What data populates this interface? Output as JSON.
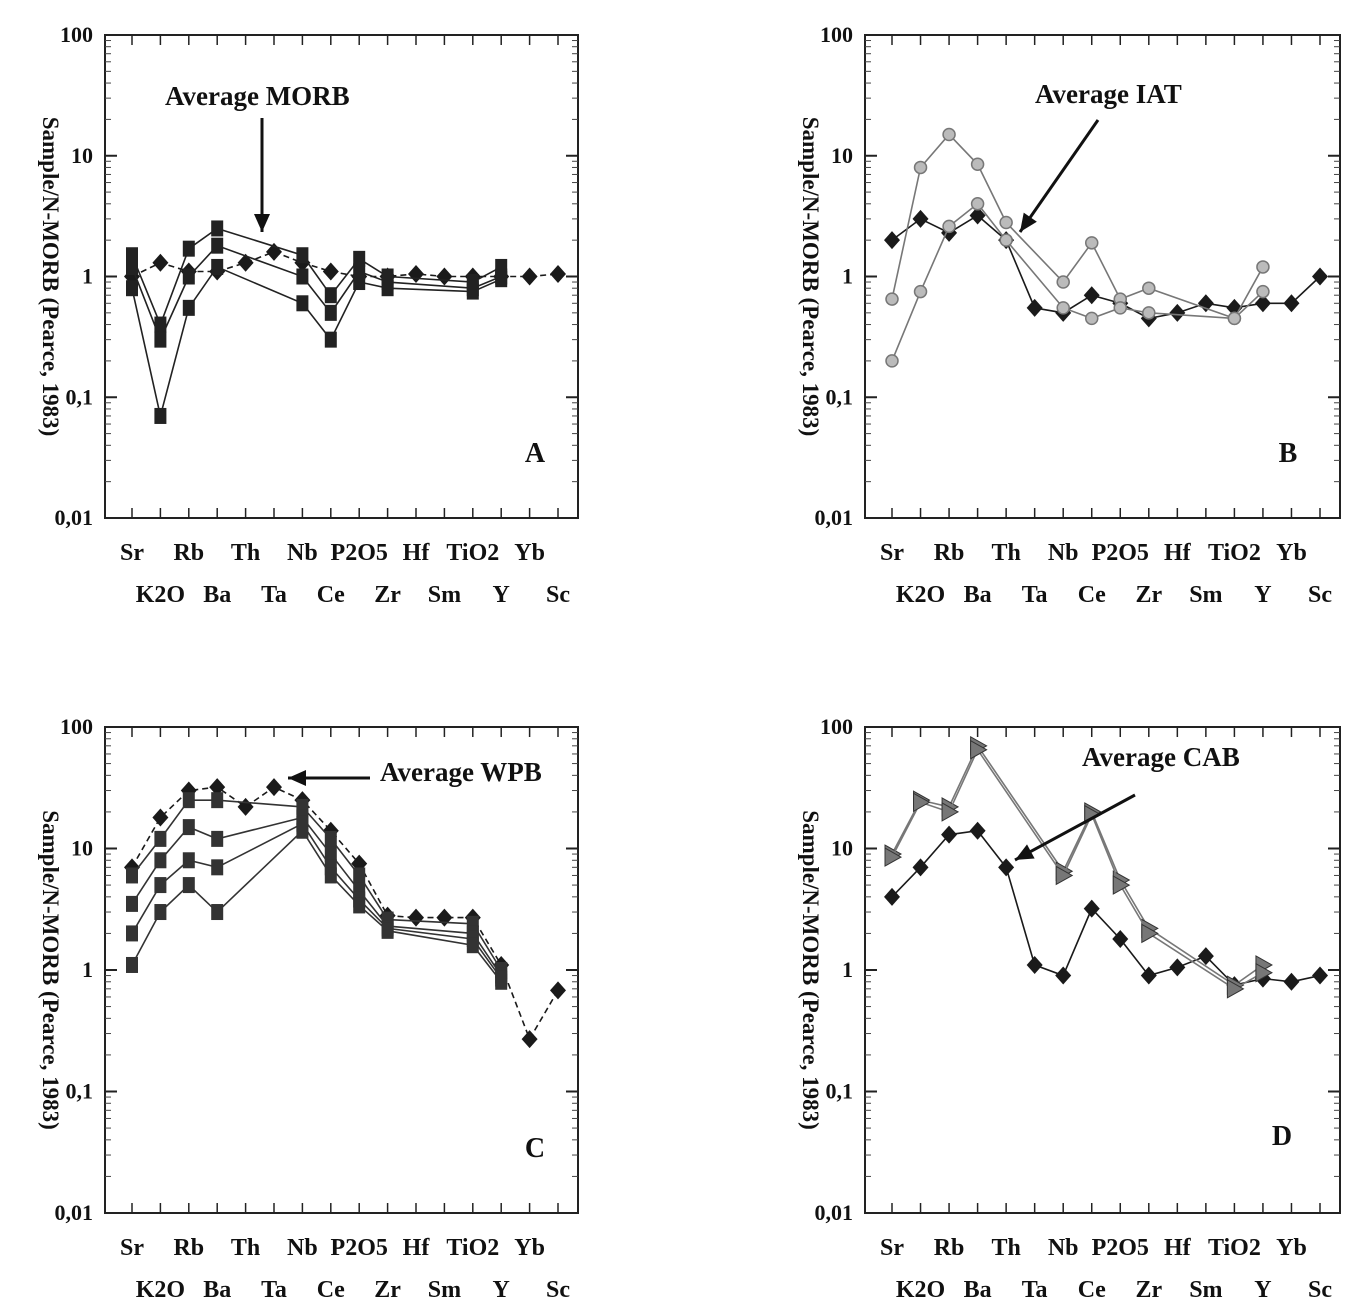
{
  "figure": {
    "tick_labels": [
      "0,01",
      "0,1",
      "1",
      "10",
      "100"
    ],
    "ylabel": "Sample/N-MORB (Pearce, 1983)"
  },
  "chart_data": [
    {
      "type": "line",
      "panel_letter": "A",
      "annotation": "Average MORB",
      "ylabel": "Sample/N-MORB (Pearce, 1983)",
      "yscale": "log",
      "ylim": [
        0.01,
        100
      ],
      "categories": [
        "Sr",
        "K2O",
        "Rb",
        "Ba",
        "Th",
        "Ta",
        "Nb",
        "Ce",
        "P2O5",
        "Zr",
        "Hf",
        "Sm",
        "TiO2",
        "Y",
        "Yb",
        "Sc"
      ],
      "series": [
        {
          "marker": "diamond",
          "color": "#1a1a1a",
          "dashed": true,
          "values": [
            1.0,
            1.3,
            1.1,
            1.1,
            1.3,
            1.6,
            1.3,
            1.1,
            1.0,
            1.0,
            1.05,
            1.0,
            1.0,
            1.0,
            1.0,
            1.05
          ]
        },
        {
          "marker": "square",
          "color": "#222222",
          "values": [
            1.5,
            0.4,
            1.7,
            2.5,
            null,
            null,
            1.5,
            0.7,
            1.4,
            1.0,
            null,
            null,
            0.9,
            1.2,
            null,
            null
          ]
        },
        {
          "marker": "square",
          "color": "#222222",
          "values": [
            1.2,
            0.3,
            1.0,
            1.8,
            null,
            null,
            1.0,
            0.5,
            1.1,
            0.9,
            null,
            null,
            0.8,
            1.0,
            null,
            null
          ]
        },
        {
          "marker": "square",
          "color": "#222222",
          "values": [
            0.8,
            0.07,
            0.55,
            1.2,
            null,
            null,
            0.6,
            0.3,
            0.9,
            0.8,
            null,
            null,
            0.75,
            0.95,
            null,
            null
          ]
        }
      ]
    },
    {
      "type": "line",
      "panel_letter": "B",
      "annotation": "Average IAT",
      "ylabel": "Sample/N-MORB (Pearce, 1983)",
      "yscale": "log",
      "ylim": [
        0.01,
        100
      ],
      "categories": [
        "Sr",
        "K2O",
        "Rb",
        "Ba",
        "Th",
        "Ta",
        "Nb",
        "Ce",
        "P2O5",
        "Zr",
        "Hf",
        "Sm",
        "TiO2",
        "Y",
        "Yb",
        "Sc"
      ],
      "series": [
        {
          "marker": "diamond",
          "color": "#1a1a1a",
          "values": [
            2.0,
            3.0,
            2.3,
            3.2,
            2.0,
            0.55,
            0.5,
            0.7,
            0.6,
            0.45,
            0.5,
            0.6,
            0.55,
            0.6,
            0.6,
            1.0
          ]
        },
        {
          "marker": "circle",
          "color": "#777777",
          "values": [
            0.65,
            8.0,
            15.0,
            8.5,
            2.8,
            null,
            0.9,
            1.9,
            0.65,
            0.8,
            null,
            null,
            0.45,
            1.2,
            null,
            null
          ]
        },
        {
          "marker": "circle",
          "color": "#777777",
          "values": [
            0.2,
            0.75,
            2.6,
            4.0,
            2.0,
            null,
            0.55,
            0.45,
            0.55,
            0.5,
            null,
            null,
            0.45,
            0.75,
            null,
            null
          ]
        }
      ]
    },
    {
      "type": "line",
      "panel_letter": "C",
      "annotation": "Average WPB",
      "ylabel": "Sample/N-MORB (Pearce, 1983)",
      "yscale": "log",
      "ylim": [
        0.01,
        100
      ],
      "categories": [
        "Sr",
        "K2O",
        "Rb",
        "Ba",
        "Th",
        "Ta",
        "Nb",
        "Ce",
        "P2O5",
        "Zr",
        "Hf",
        "Sm",
        "TiO2",
        "Y",
        "Yb",
        "Sc"
      ],
      "series": [
        {
          "marker": "diamond",
          "color": "#1a1a1a",
          "dashed": true,
          "values": [
            7.0,
            18.0,
            30.0,
            32.0,
            22.0,
            32.0,
            25.0,
            14.0,
            7.5,
            2.8,
            2.7,
            2.7,
            2.7,
            1.1,
            0.27,
            0.68
          ]
        },
        {
          "marker": "square",
          "color": "#333333",
          "values": [
            6.0,
            12.0,
            25.0,
            25.0,
            null,
            null,
            22.0,
            12.0,
            6.0,
            2.6,
            null,
            null,
            2.4,
            1.0,
            null,
            null
          ]
        },
        {
          "marker": "square",
          "color": "#333333",
          "values": [
            3.5,
            8.0,
            15.0,
            12.0,
            null,
            null,
            18.0,
            9.0,
            4.5,
            2.3,
            null,
            null,
            2.0,
            0.9,
            null,
            null
          ]
        },
        {
          "marker": "square",
          "color": "#333333",
          "values": [
            2.0,
            5.0,
            8.0,
            7.0,
            null,
            null,
            16.0,
            7.0,
            3.8,
            2.2,
            null,
            null,
            1.8,
            0.85,
            null,
            null
          ]
        },
        {
          "marker": "square",
          "color": "#333333",
          "values": [
            1.1,
            3.0,
            5.0,
            3.0,
            null,
            null,
            14.0,
            6.0,
            3.4,
            2.1,
            null,
            null,
            1.6,
            0.8,
            null,
            null
          ]
        }
      ]
    },
    {
      "type": "line",
      "panel_letter": "D",
      "annotation": "Average CAB",
      "ylabel": "Sample/N-MORB (Pearce, 1983)",
      "yscale": "log",
      "ylim": [
        0.01,
        100
      ],
      "categories": [
        "Sr",
        "K2O",
        "Rb",
        "Ba",
        "Th",
        "Ta",
        "Nb",
        "Ce",
        "P2O5",
        "Zr",
        "Hf",
        "Sm",
        "TiO2",
        "Y",
        "Yb",
        "Sc"
      ],
      "series": [
        {
          "marker": "diamond",
          "color": "#1a1a1a",
          "values": [
            4.0,
            7.0,
            13.0,
            14.0,
            7.0,
            1.1,
            0.9,
            3.2,
            1.8,
            0.9,
            1.05,
            1.3,
            0.75,
            0.85,
            0.8,
            0.9
          ]
        },
        {
          "marker": "triangle",
          "color": "#777777",
          "values": [
            9.0,
            25.0,
            22.0,
            70.0,
            null,
            null,
            6.5,
            20.0,
            5.5,
            2.2,
            null,
            null,
            0.75,
            1.1,
            null,
            null
          ]
        },
        {
          "marker": "triangle",
          "color": "#777777",
          "values": [
            8.5,
            24.0,
            20.0,
            65.0,
            null,
            null,
            6.0,
            19.0,
            5.0,
            2.0,
            null,
            null,
            0.7,
            0.95,
            null,
            null
          ]
        }
      ]
    }
  ]
}
